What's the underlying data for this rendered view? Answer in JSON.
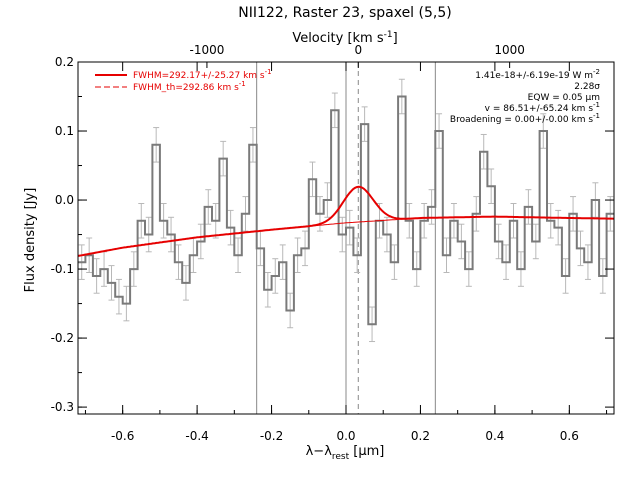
{
  "chart_data": {
    "type": "line",
    "title": "NII122, Raster 23, spaxel (5,5)",
    "xlabel": "λ−λ",
    "xlabel_sub": "rest",
    "xlabel_unit": " [μm]",
    "ylabel": "Flux density [Jy]",
    "top_xlabel": "Velocity [km s",
    "top_xlabel_sup": "-1",
    "top_xlabel_end": "]",
    "xlim": [
      -0.72,
      0.72
    ],
    "ylim": [
      -0.31,
      0.2
    ],
    "x_ticks": [
      "-0.6",
      "-0.4",
      "-0.2",
      "0.0",
      "0.2",
      "0.4",
      "0.6"
    ],
    "y_ticks": [
      "0.2",
      "0.1",
      "0.0",
      "-0.1",
      "-0.2",
      "-0.3"
    ],
    "top_ticks": [
      "-1000",
      "0",
      "1000"
    ],
    "vertical_lines": [
      -0.24,
      0.0,
      0.24
    ],
    "line_center": 0.033,
    "spectrum": {
      "x": [
        -0.71,
        -0.69,
        -0.67,
        -0.65,
        -0.63,
        -0.61,
        -0.59,
        -0.57,
        -0.55,
        -0.53,
        -0.51,
        -0.49,
        -0.47,
        -0.45,
        -0.43,
        -0.41,
        -0.39,
        -0.37,
        -0.35,
        -0.33,
        -0.31,
        -0.29,
        -0.27,
        -0.25,
        -0.23,
        -0.21,
        -0.19,
        -0.17,
        -0.15,
        -0.13,
        -0.11,
        -0.09,
        -0.07,
        -0.05,
        -0.03,
        -0.01,
        0.01,
        0.03,
        0.05,
        0.07,
        0.09,
        0.11,
        0.13,
        0.15,
        0.17,
        0.19,
        0.21,
        0.23,
        0.25,
        0.27,
        0.29,
        0.31,
        0.33,
        0.35,
        0.37,
        0.39,
        0.41,
        0.43,
        0.45,
        0.47,
        0.49,
        0.51,
        0.53,
        0.55,
        0.57,
        0.59,
        0.61,
        0.63,
        0.65,
        0.67,
        0.69,
        0.71
      ],
      "y": [
        -0.09,
        -0.08,
        -0.11,
        -0.1,
        -0.12,
        -0.14,
        -0.15,
        -0.1,
        -0.03,
        -0.05,
        0.08,
        -0.03,
        -0.05,
        -0.09,
        -0.12,
        -0.08,
        -0.06,
        -0.01,
        -0.03,
        0.06,
        -0.04,
        -0.08,
        -0.02,
        0.08,
        -0.07,
        -0.13,
        -0.11,
        -0.09,
        -0.16,
        -0.08,
        -0.07,
        0.03,
        -0.02,
        0.0,
        0.13,
        -0.05,
        -0.04,
        -0.08,
        0.11,
        -0.18,
        -0.03,
        -0.05,
        -0.09,
        0.15,
        -0.03,
        -0.1,
        -0.03,
        -0.01,
        0.1,
        -0.08,
        -0.03,
        -0.06,
        -0.1,
        -0.02,
        0.07,
        0.02,
        -0.06,
        -0.09,
        -0.03,
        -0.1,
        -0.01,
        -0.06,
        0.1,
        -0.03,
        -0.04,
        -0.11,
        -0.02,
        -0.07,
        -0.09,
        0.0,
        -0.11,
        -0.02
      ],
      "err": 0.025
    },
    "model": {
      "name": "FWHM=292.17+/-25.27 km s",
      "name_sup": "-1",
      "continuum": [
        [
          -0.72,
          -0.081
        ],
        [
          -0.6,
          -0.069
        ],
        [
          -0.4,
          -0.054
        ],
        [
          -0.2,
          -0.043
        ],
        [
          0.0,
          -0.033
        ],
        [
          0.2,
          -0.026
        ],
        [
          0.4,
          -0.024
        ],
        [
          0.6,
          -0.026
        ],
        [
          0.72,
          -0.027
        ]
      ],
      "amplitude": 0.051,
      "sigma": 0.04
    },
    "model_th": {
      "name": "FWHM_th=292.86 km s",
      "name_sup": "-1"
    },
    "annotations": [
      "1.41e-18+/-6.19e-19 W m",
      "2.28σ",
      "EQW = 0.05 μm",
      "v = 86.51+/-65.24 km s",
      "Broadening = 0.00+/-0.00 km s"
    ],
    "annotation_sups": [
      "-2",
      "",
      "",
      "-1",
      "-1"
    ],
    "colors": {
      "spectrum": "#7a7a7a",
      "errorbar": "#b8b8b8",
      "model": "#e60000",
      "vline": "#888888"
    }
  }
}
